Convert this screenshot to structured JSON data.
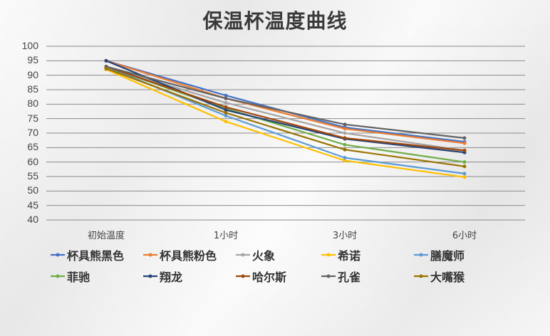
{
  "title": "保温杯温度曲线",
  "chart_data": {
    "type": "line",
    "title": "保温杯温度曲线",
    "xlabel": "",
    "ylabel": "",
    "categories": [
      "初始温度",
      "1小时",
      "3小时",
      "6小时"
    ],
    "ylim": [
      40,
      100
    ],
    "yticks": [
      100,
      95,
      90,
      85,
      80,
      75,
      70,
      65,
      60,
      55,
      50,
      45,
      40
    ],
    "grid": true,
    "legend_position": "bottom",
    "series": [
      {
        "name": "杯具熊黑色",
        "color": "#4472C4",
        "values": [
          95,
          83,
          72,
          67
        ]
      },
      {
        "name": "杯具熊粉色",
        "color": "#ED7D31",
        "values": [
          95,
          82,
          71.5,
          66.5
        ]
      },
      {
        "name": "火象",
        "color": "#A5A5A5",
        "values": [
          93,
          80.5,
          70,
          64
        ]
      },
      {
        "name": "希诺",
        "color": "#FFC000",
        "values": [
          92,
          74,
          60.5,
          54.8
        ]
      },
      {
        "name": "膳魔师",
        "color": "#5B9BD5",
        "values": [
          93,
          76,
          61.5,
          56
        ]
      },
      {
        "name": "菲驰",
        "color": "#70AD47",
        "values": [
          93,
          78.5,
          66,
          60
        ]
      },
      {
        "name": "翔龙",
        "color": "#264478",
        "values": [
          95,
          78,
          68,
          63.3
        ]
      },
      {
        "name": "哈尔斯",
        "color": "#9E480E",
        "values": [
          93,
          79,
          68.3,
          64
        ]
      },
      {
        "name": "孔雀",
        "color": "#636363",
        "values": [
          93,
          82,
          73,
          68.3
        ]
      },
      {
        "name": "大嘴猴",
        "color": "#997300",
        "values": [
          92.3,
          77,
          64.3,
          58.5
        ]
      }
    ]
  }
}
